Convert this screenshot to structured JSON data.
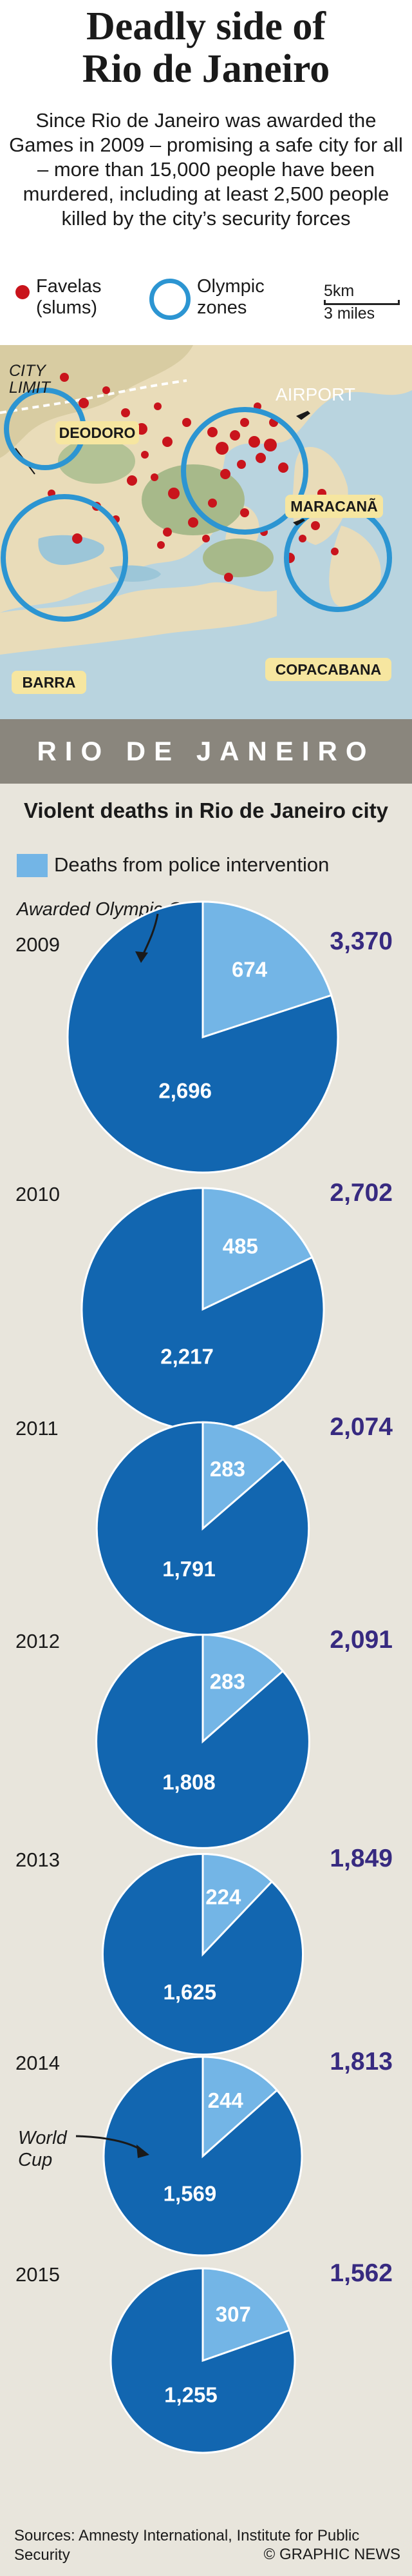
{
  "title_line1": "Deadly side of",
  "title_line2": "Rio de Janeiro",
  "intro": "Since Rio de Janeiro was awarded the Games in 2009 – promising a safe city for all – more than 15,000 people have been murdered, including at least 2,500 people killed by the city’s security forces",
  "map_legend": {
    "favelas": "Favelas (slums)",
    "olympic": "Olympic zones",
    "scale_km": "5km",
    "scale_miles": "3 miles"
  },
  "map_labels": {
    "city_limit": "CITY LIMIT",
    "airport": "AIRPORT",
    "deodoro": "DEODORO",
    "maracana": "MARACANÃ",
    "barra": "BARRA",
    "copacabana": "COPACABANA"
  },
  "city_name": "RIO DE JANEIRO",
  "chart_title": "Violent deaths in Rio de Janeiro city",
  "annotations": {
    "awarded": "Awarded Olympic Games",
    "world_cup": "World Cup"
  },
  "sources": "Sources: Amnesty International, Institute for Public Security",
  "credit": "© GRAPHIC NEWS",
  "colors": {
    "police": "#73b5e6",
    "other": "#1266b0",
    "total": "#372a80",
    "favela": "#c9141c",
    "olympic_ring": "#2c95d2",
    "label_box": "#f6e6a0"
  },
  "chart_data": {
    "type": "pie",
    "title": "Violent deaths in Rio de Janeiro city",
    "legend": [
      "Deaths from police intervention"
    ],
    "pies": [
      {
        "year": "2009",
        "total": "3,370",
        "police": 674,
        "other": 2696,
        "police_label": "674",
        "other_label": "2,696",
        "annotation": "Awarded Olympic Games"
      },
      {
        "year": "2010",
        "total": "2,702",
        "police": 485,
        "other": 2217,
        "police_label": "485",
        "other_label": "2,217"
      },
      {
        "year": "2011",
        "total": "2,074",
        "police": 283,
        "other": 1791,
        "police_label": "283",
        "other_label": "1,791"
      },
      {
        "year": "2012",
        "total": "2,091",
        "police": 283,
        "other": 1808,
        "police_label": "283",
        "other_label": "1,808"
      },
      {
        "year": "2013",
        "total": "1,849",
        "police": 224,
        "other": 1625,
        "police_label": "224",
        "other_label": "1,625"
      },
      {
        "year": "2014",
        "total": "1,813",
        "police": 244,
        "other": 1569,
        "police_label": "244",
        "other_label": "1,569",
        "annotation": "World Cup"
      },
      {
        "year": "2015",
        "total": "1,562",
        "police": 307,
        "other": 1255,
        "police_label": "307",
        "other_label": "1,255"
      }
    ]
  }
}
